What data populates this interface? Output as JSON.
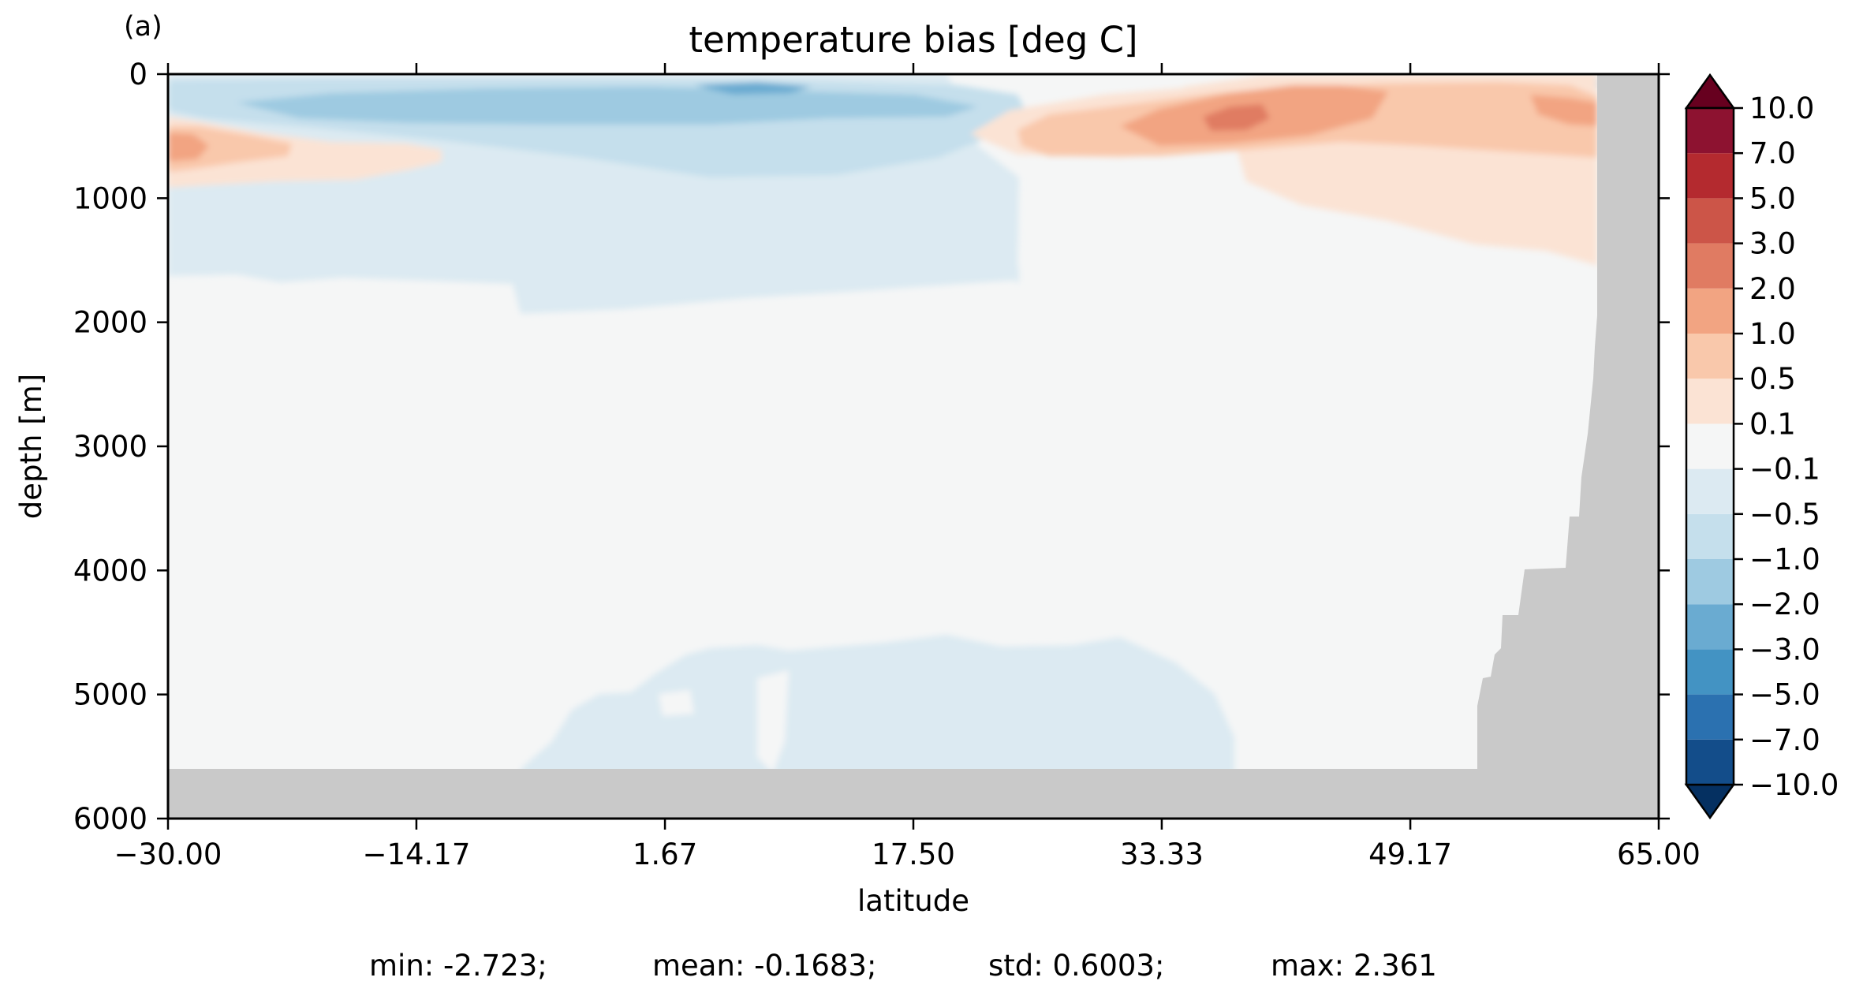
{
  "chart_data": {
    "type": "heatmap",
    "panel_label": "(a)",
    "title": "temperature bias [deg C]",
    "xlabel": "latitude",
    "ylabel": "depth [m]",
    "xlim": [
      -30.0,
      65.0
    ],
    "ylim": [
      6000,
      0
    ],
    "x_ticks": [
      "−30.00",
      "−14.17",
      "1.67",
      "17.50",
      "33.33",
      "49.17",
      "65.00"
    ],
    "x_tick_values": [
      -30.0,
      -14.17,
      1.67,
      17.5,
      33.33,
      49.17,
      65.0
    ],
    "y_ticks": [
      "0",
      "1000",
      "2000",
      "3000",
      "4000",
      "5000",
      "6000"
    ],
    "y_tick_values": [
      0,
      1000,
      2000,
      3000,
      4000,
      5000,
      6000
    ],
    "colorbar": {
      "levels": [
        "−10.0",
        "−7.0",
        "−5.0",
        "−3.0",
        "−2.0",
        "−1.0",
        "−0.5",
        "−0.1",
        "0.1",
        "0.5",
        "1.0",
        "2.0",
        "3.0",
        "5.0",
        "7.0",
        "10.0"
      ],
      "colors": [
        "#053061",
        "#134d8a",
        "#2b71b0",
        "#4393c3",
        "#6aabd1",
        "#9ecae1",
        "#c5dfec",
        "#dceaf2",
        "#f5f6f6",
        "#fbe3d4",
        "#f9c8ab",
        "#f2a482",
        "#e07b62",
        "#cc5548",
        "#b42a2f",
        "#8d1230",
        "#67001f"
      ],
      "extend": "both"
    },
    "land_color": "#c9c9c9",
    "regions": [
      {
        "level": "−0.5 to −0.1",
        "lat": [
          -30.0,
          26.0
        ],
        "depth": [
          800,
          1900
        ]
      },
      {
        "level": "−1.0 to −0.5",
        "lat": [
          -28.0,
          25.0
        ],
        "depth": [
          20,
          750
        ]
      },
      {
        "level": "−2.0 to −1.0",
        "lat": [
          -20.0,
          15.0
        ],
        "depth": [
          100,
          400
        ]
      },
      {
        "level": "−3.0 to −2.0",
        "lat": [
          3.0,
          8.0
        ],
        "depth": [
          60,
          160
        ]
      },
      {
        "level": "0.5 to 1.0",
        "lat": [
          -30.0,
          -22.0
        ],
        "depth": [
          450,
          850
        ]
      },
      {
        "level": "1.0 to 2.0",
        "lat": [
          -30.0,
          -27.0
        ],
        "depth": [
          500,
          700
        ]
      },
      {
        "level": "0.1 to 0.5",
        "lat": [
          33.0,
          61.0
        ],
        "depth": [
          200,
          1600
        ]
      },
      {
        "level": "0.5 to 1.0",
        "lat": [
          25.0,
          61.0
        ],
        "depth": [
          50,
          650
        ]
      },
      {
        "level": "1.0 to 2.0",
        "lat": [
          33.0,
          48.0
        ],
        "depth": [
          150,
          600
        ]
      },
      {
        "level": "2.0 to 3.0",
        "lat": [
          39.0,
          42.0
        ],
        "depth": [
          270,
          430
        ]
      },
      {
        "level": "−0.5 to −0.1",
        "lat": [
          2.0,
          37.0
        ],
        "depth": [
          4500,
          5600
        ]
      }
    ],
    "stats": {
      "min": "-2.723",
      "mean": "-0.1683",
      "std": "0.6003",
      "max": "2.361"
    }
  },
  "stats_text": {
    "min": "min: -2.723;",
    "mean": "mean: -0.1683;",
    "std": "std: 0.6003;",
    "max": "max: 2.361"
  }
}
